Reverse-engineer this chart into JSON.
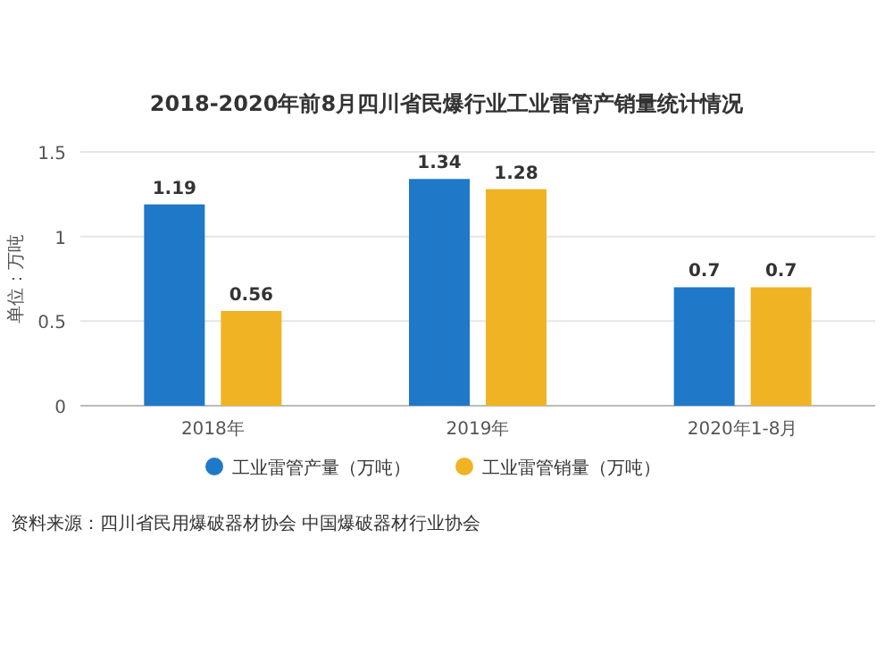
{
  "chart_data": {
    "type": "bar",
    "title": "2018-2020年前8月四川省民爆行业工业雷管产销量统计情况",
    "ylabel": "单位：万吨",
    "categories": [
      "2018年",
      "2019年",
      "2020年1-8月"
    ],
    "series": [
      {
        "name": "工业雷管产量（万吨）",
        "color": "#1f78c8",
        "values": [
          1.19,
          1.34,
          0.7
        ]
      },
      {
        "name": "工业雷管销量（万吨）",
        "color": "#f0b323",
        "values": [
          0.56,
          1.28,
          0.7
        ]
      }
    ],
    "ylim": [
      0,
      1.5
    ],
    "yticks": [
      0,
      0.5,
      1,
      1.5
    ],
    "grid": "y",
    "data_labels": true,
    "legend": "bottom",
    "annotations": [
      "资料来源：四川省民用爆破器材协会 中国爆破器材行业协会"
    ]
  }
}
